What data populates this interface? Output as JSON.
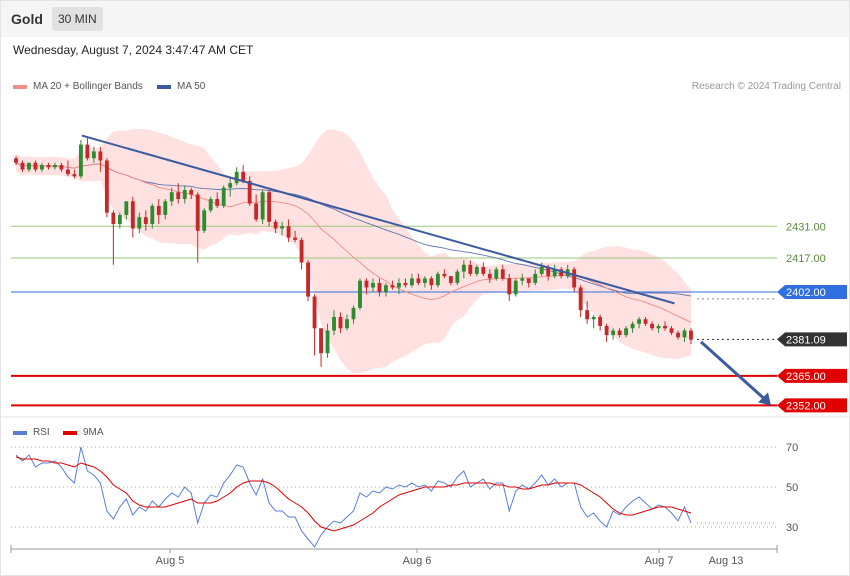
{
  "header": {
    "symbol": "Gold",
    "timeframe": "30 MIN",
    "datetime": "Wednesday, August 7, 2024 3:47:47 AM CET"
  },
  "legend": {
    "ma20": {
      "label": "MA 20 + Bollinger Bands",
      "color": "#f28b82"
    },
    "ma50": {
      "label": "MA 50",
      "color": "#3a5ba0"
    },
    "credit": "Research © 2024 Trading Central"
  },
  "rsi_legend": {
    "rsi": {
      "label": "RSI",
      "color": "#5b7fd6"
    },
    "ma9": {
      "label": "9MA",
      "color": "#e00000"
    }
  },
  "chart_data": [
    {
      "type": "candlestick",
      "title": "Gold",
      "timeframe": "30 MIN",
      "x_ticks": [
        "Aug 5",
        "Aug 6",
        "Aug 7",
        "Aug 13"
      ],
      "ylim": [
        2346,
        2488
      ],
      "candles": [
        [
          2461,
          2462,
          2458,
          2459
        ],
        [
          2459,
          2460,
          2455,
          2456
        ],
        [
          2456,
          2459,
          2455,
          2459
        ],
        [
          2459,
          2460,
          2455,
          2456
        ],
        [
          2456,
          2459,
          2455,
          2458
        ],
        [
          2458,
          2459,
          2456,
          2457
        ],
        [
          2457,
          2459,
          2456,
          2458
        ],
        [
          2458,
          2459,
          2455,
          2456
        ],
        [
          2456,
          2460,
          2453,
          2454
        ],
        [
          2454,
          2456,
          2452,
          2453
        ],
        [
          2453,
          2469,
          2452,
          2467
        ],
        [
          2467,
          2470,
          2460,
          2461
        ],
        [
          2461,
          2466,
          2459,
          2464
        ],
        [
          2464,
          2466,
          2455,
          2460
        ],
        [
          2460,
          2461,
          2435,
          2437
        ],
        [
          2437,
          2438,
          2414,
          2432
        ],
        [
          2432,
          2437,
          2430,
          2436
        ],
        [
          2436,
          2442,
          2434,
          2442
        ],
        [
          2442,
          2444,
          2426,
          2430
        ],
        [
          2430,
          2437,
          2428,
          2435
        ],
        [
          2435,
          2438,
          2429,
          2432
        ],
        [
          2432,
          2441,
          2430,
          2440
        ],
        [
          2440,
          2443,
          2432,
          2436
        ],
        [
          2436,
          2443,
          2434,
          2442
        ],
        [
          2442,
          2448,
          2440,
          2446
        ],
        [
          2446,
          2450,
          2441,
          2443
        ],
        [
          2443,
          2449,
          2441,
          2447
        ],
        [
          2447,
          2448,
          2443,
          2445
        ],
        [
          2445,
          2446,
          2415,
          2429
        ],
        [
          2429,
          2439,
          2428,
          2438
        ],
        [
          2438,
          2444,
          2437,
          2443
        ],
        [
          2443,
          2446,
          2439,
          2440
        ],
        [
          2440,
          2449,
          2439,
          2448
        ],
        [
          2448,
          2453,
          2444,
          2450
        ],
        [
          2450,
          2457,
          2449,
          2455
        ],
        [
          2455,
          2458,
          2450,
          2451
        ],
        [
          2451,
          2453,
          2440,
          2441
        ],
        [
          2441,
          2445,
          2433,
          2434
        ],
        [
          2434,
          2447,
          2432,
          2446
        ],
        [
          2446,
          2447,
          2431,
          2433
        ],
        [
          2433,
          2434,
          2428,
          2430
        ],
        [
          2430,
          2433,
          2427,
          2431
        ],
        [
          2431,
          2434,
          2424,
          2426
        ],
        [
          2426,
          2429,
          2424,
          2425
        ],
        [
          2425,
          2426,
          2412,
          2415
        ],
        [
          2415,
          2416,
          2398,
          2400
        ],
        [
          2400,
          2401,
          2374,
          2386
        ],
        [
          2386,
          2386,
          2369,
          2375
        ],
        [
          2375,
          2388,
          2373,
          2385
        ],
        [
          2385,
          2394,
          2383,
          2391
        ],
        [
          2391,
          2393,
          2384,
          2386
        ],
        [
          2386,
          2392,
          2385,
          2390
        ],
        [
          2390,
          2396,
          2388,
          2395
        ],
        [
          2395,
          2408,
          2394,
          2407
        ],
        [
          2407,
          2408,
          2401,
          2404
        ],
        [
          2404,
          2408,
          2402,
          2406
        ],
        [
          2406,
          2408,
          2400,
          2402
        ],
        [
          2402,
          2406,
          2400,
          2405
        ],
        [
          2405,
          2407,
          2403,
          2404
        ],
        [
          2404,
          2408,
          2401,
          2406
        ],
        [
          2406,
          2408,
          2404,
          2405
        ],
        [
          2405,
          2410,
          2404,
          2408
        ],
        [
          2408,
          2410,
          2405,
          2406
        ],
        [
          2406,
          2409,
          2404,
          2408
        ],
        [
          2408,
          2409,
          2403,
          2405
        ],
        [
          2405,
          2411,
          2404,
          2410
        ],
        [
          2410,
          2412,
          2408,
          2409
        ],
        [
          2409,
          2409,
          2405,
          2406
        ],
        [
          2406,
          2412,
          2405,
          2411
        ],
        [
          2411,
          2416,
          2408,
          2414
        ],
        [
          2414,
          2416,
          2409,
          2410
        ],
        [
          2410,
          2414,
          2409,
          2413
        ],
        [
          2413,
          2415,
          2409,
          2410
        ],
        [
          2410,
          2412,
          2406,
          2408
        ],
        [
          2408,
          2413,
          2407,
          2412
        ],
        [
          2412,
          2414,
          2407,
          2408
        ],
        [
          2408,
          2410,
          2398,
          2401
        ],
        [
          2401,
          2408,
          2400,
          2407
        ],
        [
          2407,
          2410,
          2405,
          2408
        ],
        [
          2408,
          2408,
          2404,
          2406
        ],
        [
          2406,
          2412,
          2405,
          2410
        ],
        [
          2410,
          2415,
          2409,
          2413
        ],
        [
          2413,
          2414,
          2407,
          2409
        ],
        [
          2409,
          2414,
          2408,
          2412
        ],
        [
          2412,
          2413,
          2408,
          2409
        ],
        [
          2409,
          2414,
          2408,
          2412
        ],
        [
          2412,
          2413,
          2402,
          2404
        ],
        [
          2404,
          2405,
          2391,
          2394
        ],
        [
          2394,
          2398,
          2388,
          2390
        ],
        [
          2390,
          2392,
          2386,
          2391
        ],
        [
          2391,
          2392,
          2385,
          2387
        ],
        [
          2387,
          2388,
          2380,
          2383
        ],
        [
          2383,
          2386,
          2381,
          2385
        ],
        [
          2385,
          2386,
          2382,
          2383
        ],
        [
          2383,
          2387,
          2382,
          2386
        ],
        [
          2386,
          2389,
          2384,
          2388
        ],
        [
          2388,
          2391,
          2386,
          2390
        ],
        [
          2390,
          2391,
          2387,
          2388
        ],
        [
          2388,
          2389,
          2385,
          2386
        ],
        [
          2386,
          2388,
          2384,
          2387
        ],
        [
          2387,
          2389,
          2385,
          2386
        ],
        [
          2386,
          2387,
          2383,
          2384
        ],
        [
          2384,
          2385,
          2381,
          2382
        ],
        [
          2382,
          2386,
          2380,
          2385
        ],
        [
          2385,
          2386,
          2379,
          2381
        ]
      ],
      "levels": [
        {
          "value": 2431.0,
          "label": "2431.00",
          "color": "#9ac97a",
          "kind": "thin"
        },
        {
          "value": 2417.0,
          "label": "2417.00",
          "color": "#9ac97a",
          "kind": "thin"
        },
        {
          "value": 2402.0,
          "label": "2402.00",
          "color": "#2f6fe0",
          "kind": "blue"
        },
        {
          "value": 2381.09,
          "label": "2381.09",
          "color": "#333333",
          "kind": "last"
        },
        {
          "value": 2365.0,
          "label": "2365.00",
          "color": "#e00000",
          "kind": "red"
        },
        {
          "value": 2352.0,
          "label": "2352.00",
          "color": "#e00000",
          "kind": "red"
        }
      ],
      "trendline": {
        "from_index": 10,
        "from_price": 2471,
        "to_index": 103,
        "to_price": 2397
      },
      "forecast_arrow": {
        "from_price": 2380,
        "to_price": 2352
      },
      "ma20_color": "#f28b82",
      "ma50_color": "#3a5ba0",
      "band_color": "#ffdcdc",
      "up_color": "#2e8b2e",
      "down_color": "#c62828"
    },
    {
      "type": "line",
      "title": "RSI",
      "ylim": [
        20,
        75
      ],
      "y_ticks": [
        70,
        50,
        30
      ],
      "series": [
        {
          "name": "RSI",
          "color": "#5b7fd6",
          "values": [
            66,
            63,
            66,
            60,
            62,
            62,
            63,
            60,
            55,
            52,
            70,
            58,
            56,
            52,
            38,
            34,
            40,
            44,
            36,
            40,
            38,
            43,
            40,
            44,
            47,
            45,
            50,
            47,
            32,
            42,
            46,
            45,
            52,
            56,
            61,
            60,
            52,
            46,
            54,
            42,
            38,
            38,
            35,
            35,
            28,
            24,
            20,
            26,
            30,
            33,
            32,
            35,
            38,
            47,
            45,
            48,
            47,
            50,
            49,
            51,
            50,
            52,
            50,
            51,
            48,
            53,
            52,
            50,
            55,
            58,
            50,
            52,
            54,
            49,
            52,
            52,
            38,
            48,
            51,
            49,
            52,
            56,
            51,
            54,
            50,
            52,
            52,
            40,
            35,
            37,
            33,
            30,
            38,
            36,
            40,
            43,
            45,
            42,
            39,
            41,
            40,
            37,
            33,
            40,
            32
          ]
        },
        {
          "name": "9MA",
          "color": "#e00000",
          "values": [
            65,
            64,
            64,
            64,
            63,
            63,
            62,
            62,
            61,
            60,
            62,
            61,
            60,
            58,
            55,
            51,
            49,
            47,
            43,
            41,
            40,
            40,
            40,
            40,
            41,
            42,
            43,
            44,
            42,
            42,
            42,
            43,
            45,
            47,
            50,
            52,
            53,
            53,
            53,
            52,
            50,
            47,
            44,
            42,
            40,
            37,
            33,
            30,
            29,
            28,
            29,
            30,
            31,
            33,
            35,
            37,
            40,
            42,
            44,
            46,
            47,
            48,
            49,
            50,
            50,
            50,
            50,
            51,
            51,
            52,
            52,
            52,
            52,
            52,
            51,
            51,
            50,
            50,
            49,
            49,
            50,
            51,
            51,
            52,
            52,
            52,
            52,
            51,
            49,
            47,
            45,
            42,
            39,
            37,
            36,
            36,
            37,
            38,
            39,
            40,
            40,
            40,
            39,
            38,
            37
          ]
        }
      ]
    }
  ]
}
